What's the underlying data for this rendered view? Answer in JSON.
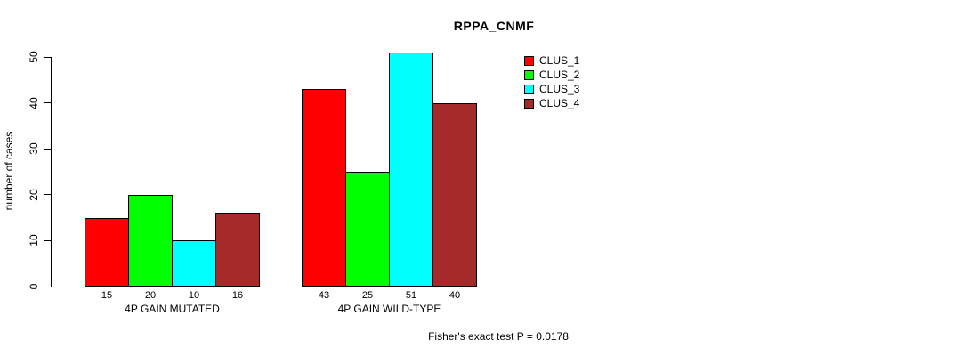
{
  "chart_data": {
    "type": "bar",
    "title": "RPPA_CNMF",
    "xlabel": "",
    "ylabel": "number of cases",
    "categories": [
      "4P GAIN MUTATED",
      "4P GAIN WILD-TYPE"
    ],
    "series": [
      {
        "name": "CLUS_1",
        "color": "#ff0000",
        "values": [
          15,
          43
        ]
      },
      {
        "name": "CLUS_2",
        "color": "#00ff00",
        "values": [
          20,
          25
        ]
      },
      {
        "name": "CLUS_3",
        "color": "#00ffff",
        "values": [
          10,
          51
        ]
      },
      {
        "name": "CLUS_4",
        "color": "#a52a2a",
        "values": [
          16,
          40
        ]
      }
    ],
    "ylim": [
      0,
      50
    ],
    "yticks": [
      0,
      10,
      20,
      30,
      40,
      50
    ],
    "bar_value_labels": [
      [
        15,
        20,
        10,
        16
      ],
      [
        43,
        25,
        51,
        40
      ]
    ],
    "legend_position": "top-right",
    "grid": false,
    "annotation": "Fisher's exact test P = 0.0178"
  }
}
